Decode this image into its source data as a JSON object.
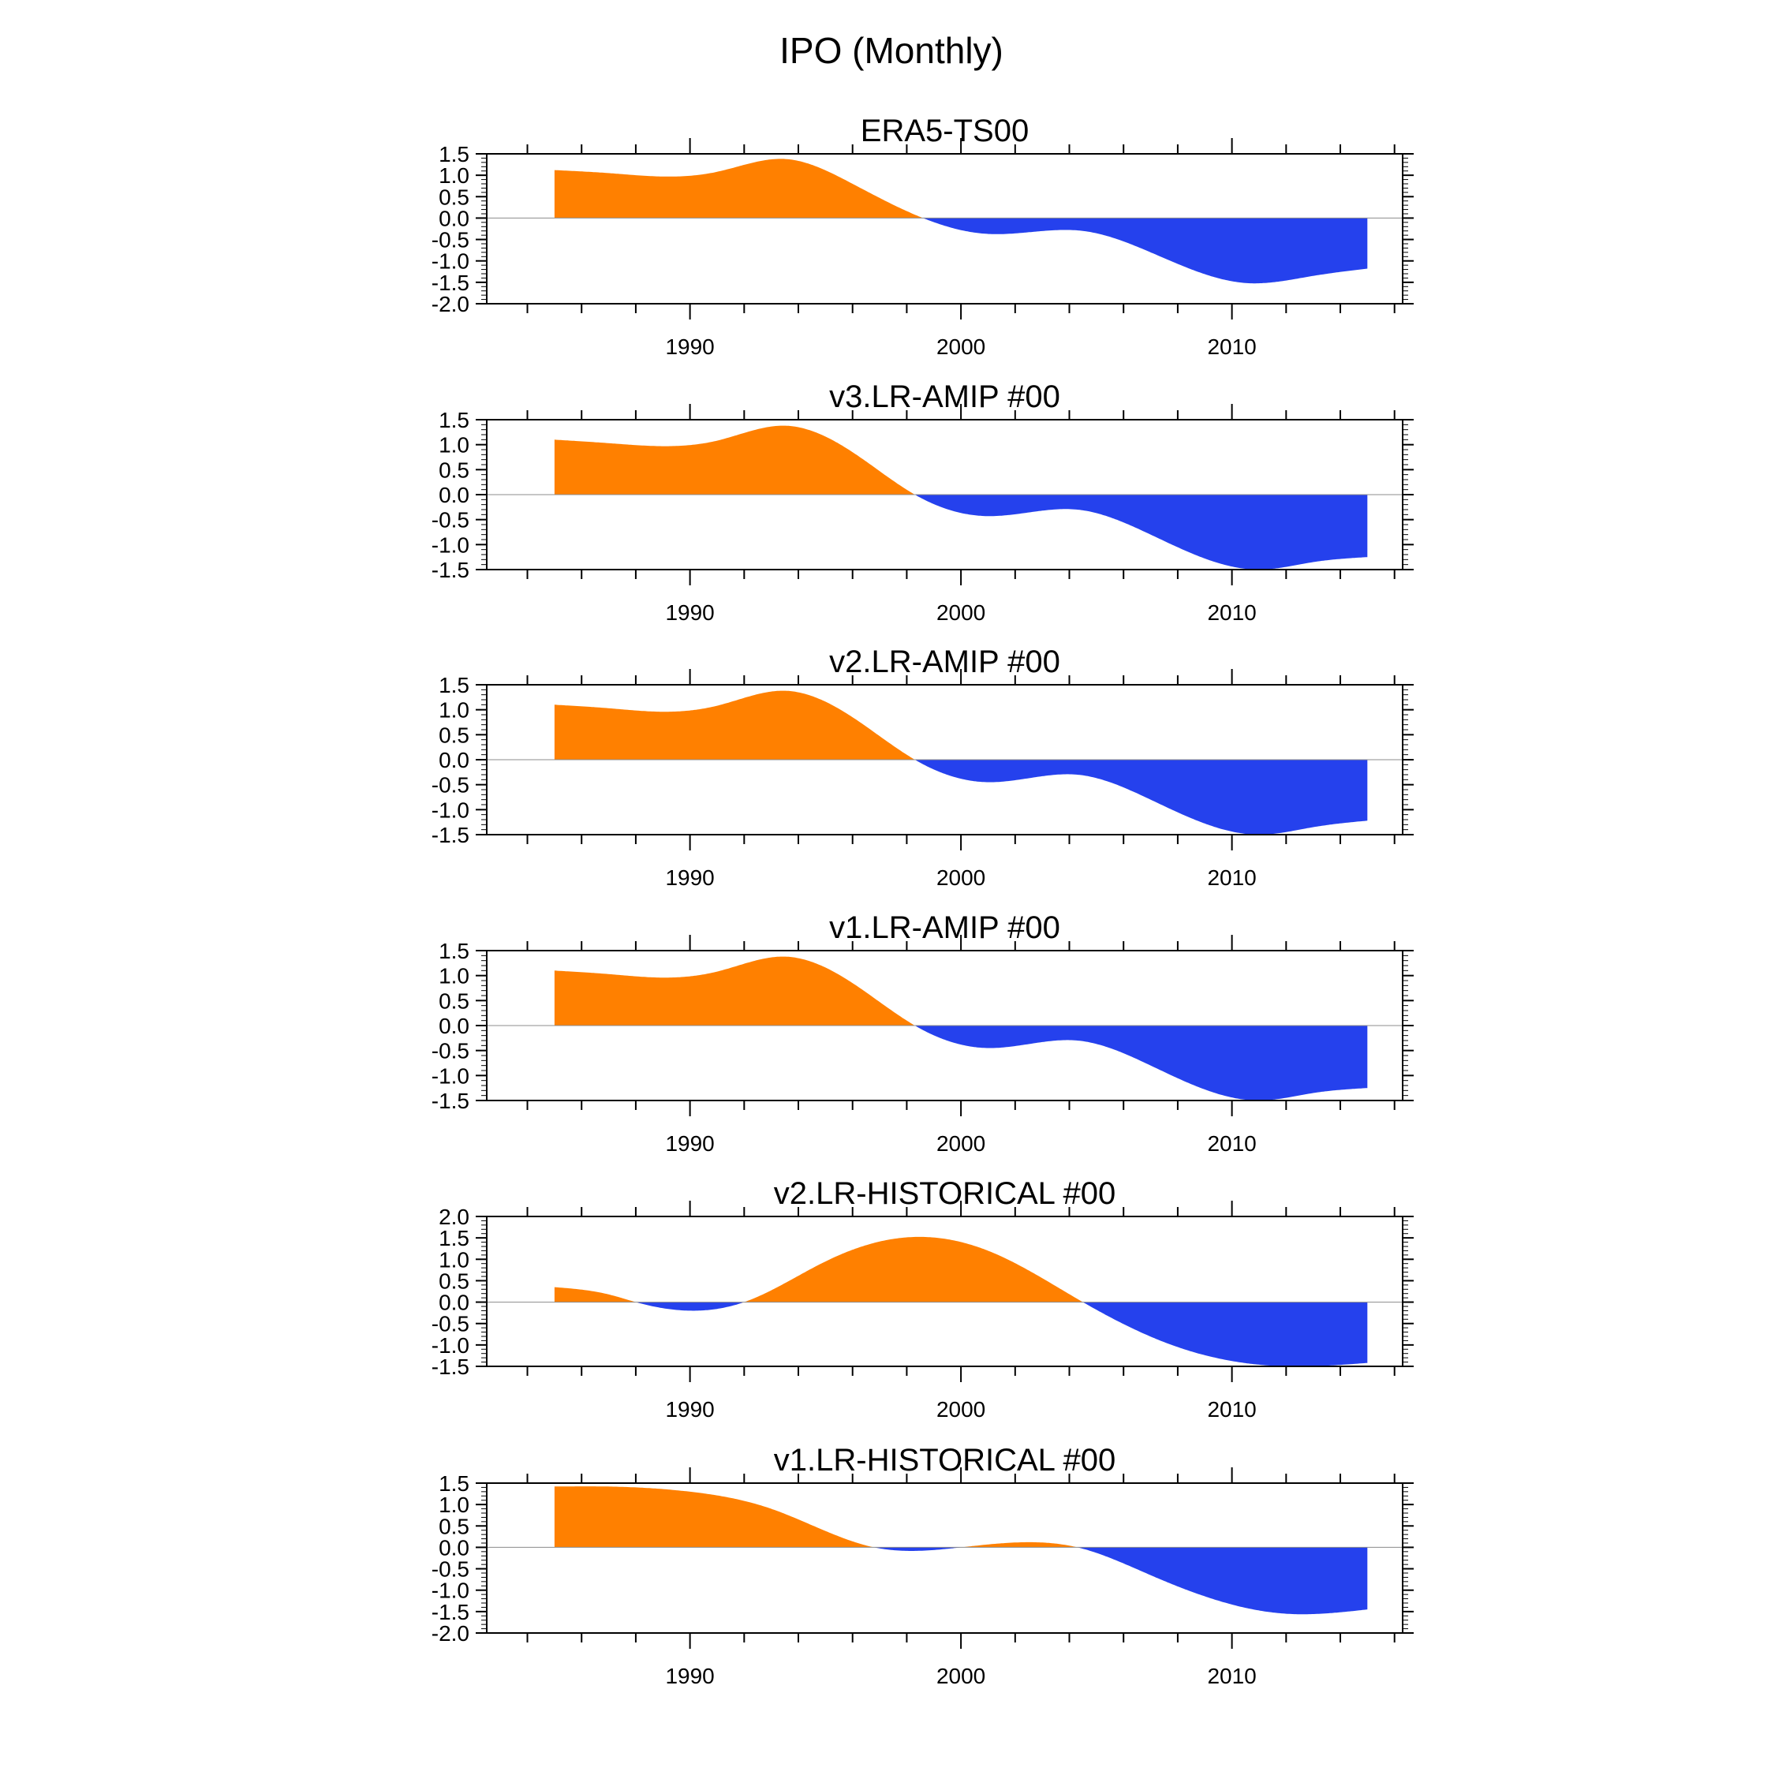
{
  "figure": {
    "title": "IPO (Monthly)"
  },
  "colors": {
    "positive": "#ff8000",
    "negative": "#2541ed",
    "axis": "#000000",
    "zero_line": "#8c8c8c"
  },
  "chart_data": [
    {
      "type": "area",
      "title": "ERA5-TS00",
      "xlabel": "",
      "ylabel": "",
      "xlim": [
        1982.5,
        2016.3
      ],
      "ylim": [
        -2.0,
        1.5
      ],
      "xticks": [
        1990,
        2000,
        2010
      ],
      "xtick_labels": [
        "1990",
        "2000",
        "2010"
      ],
      "yticks": [
        1.5,
        1.0,
        0.5,
        0.0,
        -0.5,
        -1.0,
        -1.5,
        -2.0
      ],
      "ytick_labels": [
        "1.5",
        "1.0",
        "0.5",
        "0.0",
        "-0.5",
        "-1.0",
        "-1.5",
        "-2.0"
      ],
      "x": [
        1985,
        1987,
        1989,
        1991,
        1993.5,
        1996,
        1998.6,
        2001,
        2004.5,
        2007,
        2010.6,
        2013,
        2015
      ],
      "values": [
        1.12,
        1.05,
        0.97,
        1.08,
        1.38,
        0.8,
        0.0,
        -0.37,
        -0.3,
        -0.8,
        -1.52,
        -1.35,
        -1.18
      ]
    },
    {
      "type": "area",
      "title": "v3.LR-AMIP  #00",
      "xlabel": "",
      "ylabel": "",
      "xlim": [
        1982.5,
        2016.3
      ],
      "ylim": [
        -1.5,
        1.5
      ],
      "xticks": [
        1990,
        2000,
        2010
      ],
      "xtick_labels": [
        "1990",
        "2000",
        "2010"
      ],
      "yticks": [
        1.5,
        1.0,
        0.5,
        0.0,
        -0.5,
        -1.0,
        -1.5
      ],
      "ytick_labels": [
        "1.5",
        "1.0",
        "0.5",
        "0.0",
        "-0.5",
        "-1.0",
        "-1.5"
      ],
      "x": [
        1985,
        1987,
        1989,
        1991,
        1993.5,
        1996,
        1998.3,
        2001,
        2004.3,
        2007,
        2011,
        2013,
        2015
      ],
      "values": [
        1.1,
        1.03,
        0.97,
        1.08,
        1.38,
        0.85,
        0.0,
        -0.43,
        -0.3,
        -0.8,
        -1.5,
        -1.35,
        -1.25
      ]
    },
    {
      "type": "area",
      "title": "v2.LR-AMIP  #00",
      "xlabel": "",
      "ylabel": "",
      "xlim": [
        1982.5,
        2016.3
      ],
      "ylim": [
        -1.5,
        1.5
      ],
      "xticks": [
        1990,
        2000,
        2010
      ],
      "xtick_labels": [
        "1990",
        "2000",
        "2010"
      ],
      "yticks": [
        1.5,
        1.0,
        0.5,
        0.0,
        -0.5,
        -1.0,
        -1.5
      ],
      "ytick_labels": [
        "1.5",
        "1.0",
        "0.5",
        "0.0",
        "-0.5",
        "-1.0",
        "-1.5"
      ],
      "x": [
        1985,
        1987,
        1989,
        1991,
        1993.5,
        1996,
        1998.3,
        2001,
        2004.3,
        2007,
        2011,
        2013,
        2015
      ],
      "values": [
        1.1,
        1.03,
        0.96,
        1.08,
        1.38,
        0.85,
        0.0,
        -0.45,
        -0.3,
        -0.8,
        -1.5,
        -1.35,
        -1.22
      ]
    },
    {
      "type": "area",
      "title": "v1.LR-AMIP  #00",
      "xlabel": "",
      "ylabel": "",
      "xlim": [
        1982.5,
        2016.3
      ],
      "ylim": [
        -1.5,
        1.5
      ],
      "xticks": [
        1990,
        2000,
        2010
      ],
      "xtick_labels": [
        "1990",
        "2000",
        "2010"
      ],
      "yticks": [
        1.5,
        1.0,
        0.5,
        0.0,
        -0.5,
        -1.0,
        -1.5
      ],
      "ytick_labels": [
        "1.5",
        "1.0",
        "0.5",
        "0.0",
        "-0.5",
        "-1.0",
        "-1.5"
      ],
      "x": [
        1985,
        1987,
        1989,
        1991,
        1993.5,
        1996,
        1998.3,
        2001,
        2004.3,
        2007,
        2011,
        2013,
        2015
      ],
      "values": [
        1.1,
        1.03,
        0.96,
        1.08,
        1.38,
        0.85,
        0.0,
        -0.45,
        -0.3,
        -0.8,
        -1.5,
        -1.35,
        -1.25
      ]
    },
    {
      "type": "area",
      "title": "v2.LR-HISTORICAL  #00",
      "xlabel": "",
      "ylabel": "",
      "xlim": [
        1982.5,
        2016.3
      ],
      "ylim": [
        -1.5,
        2.0
      ],
      "xticks": [
        1990,
        2000,
        2010
      ],
      "xtick_labels": [
        "1990",
        "2000",
        "2010"
      ],
      "yticks": [
        2.0,
        1.5,
        1.0,
        0.5,
        0.0,
        -0.5,
        -1.0,
        -1.5
      ],
      "ytick_labels": [
        "2.0",
        "1.5",
        "1.0",
        "0.5",
        "0.0",
        "-0.5",
        "-1.0",
        "-1.5"
      ],
      "x": [
        1985,
        1987,
        1988,
        1990,
        1992,
        1995,
        1998.2,
        2001,
        2004.5,
        2008,
        2012,
        2015
      ],
      "values": [
        0.35,
        0.18,
        0.0,
        -0.2,
        0.0,
        0.95,
        1.52,
        1.2,
        0.0,
        -1.05,
        -1.5,
        -1.42
      ]
    },
    {
      "type": "area",
      "title": "v1.LR-HISTORICAL  #00",
      "xlabel": "",
      "ylabel": "",
      "xlim": [
        1982.5,
        2016.3
      ],
      "ylim": [
        -2.0,
        1.5
      ],
      "xticks": [
        1990,
        2000,
        2010
      ],
      "xtick_labels": [
        "1990",
        "2000",
        "2010"
      ],
      "yticks": [
        1.5,
        1.0,
        0.5,
        0.0,
        -0.5,
        -1.0,
        -1.5,
        -2.0
      ],
      "ytick_labels": [
        "1.5",
        "1.0",
        "0.5",
        "0.0",
        "-0.5",
        "-1.0",
        "-1.5",
        "-2.0"
      ],
      "x": [
        1985,
        1987,
        1990,
        1993,
        1996.8,
        1998.5,
        2000,
        2002.5,
        2004.3,
        2007,
        2012,
        2015
      ],
      "values": [
        1.42,
        1.42,
        1.3,
        0.9,
        0.0,
        -0.08,
        0.0,
        0.12,
        0.0,
        -0.65,
        -1.55,
        -1.45
      ]
    }
  ]
}
